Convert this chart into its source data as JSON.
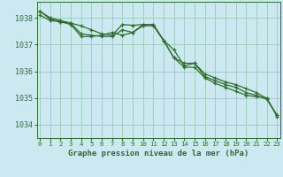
{
  "xlabel": "Graphe pression niveau de la mer (hPa)",
  "bg_color": "#cce8f0",
  "grid_color": "#99ccbb",
  "line_color": "#2d6e2d",
  "marker_color": "#2d6e2d",
  "ylim": [
    1033.5,
    1038.6
  ],
  "xlim": [
    -0.3,
    23.3
  ],
  "yticks": [
    1034,
    1035,
    1036,
    1037,
    1038
  ],
  "xticks": [
    0,
    1,
    2,
    3,
    4,
    5,
    6,
    7,
    8,
    9,
    10,
    11,
    12,
    13,
    14,
    15,
    16,
    17,
    18,
    19,
    20,
    21,
    22,
    23
  ],
  "series": [
    [
      1038.25,
      1038.0,
      1037.9,
      1037.8,
      1037.7,
      1037.55,
      1037.4,
      1037.35,
      1037.75,
      1037.72,
      1037.75,
      1037.75,
      1037.15,
      1036.5,
      1036.3,
      1036.3,
      1035.9,
      1035.75,
      1035.6,
      1035.5,
      1035.35,
      1035.2,
      1034.98,
      1034.35
    ],
    [
      1038.25,
      1037.95,
      1037.85,
      1037.8,
      1037.4,
      1037.35,
      1037.3,
      1037.3,
      1037.55,
      1037.45,
      1037.7,
      1037.7,
      1037.15,
      1036.8,
      1036.2,
      1036.3,
      1035.8,
      1035.65,
      1035.5,
      1035.4,
      1035.2,
      1035.1,
      1034.95,
      1034.35
    ],
    [
      1038.1,
      1037.9,
      1037.85,
      1037.75,
      1037.3,
      1037.3,
      1037.35,
      1037.45,
      1037.35,
      1037.45,
      1037.75,
      1037.75,
      1037.15,
      1036.5,
      1036.15,
      1036.15,
      1035.75,
      1035.55,
      1035.4,
      1035.25,
      1035.1,
      1035.05,
      1035.0,
      1034.3
    ]
  ]
}
